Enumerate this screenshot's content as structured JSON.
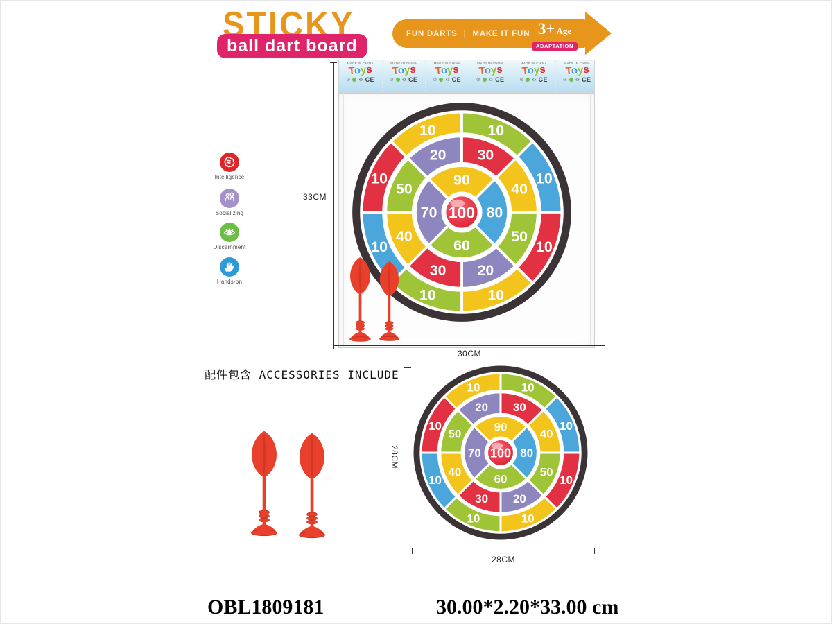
{
  "header": {
    "title_line1": "STICKY",
    "title_line2": "ball dart board",
    "colors": {
      "title": "#E8951C",
      "pill_bg": "#E0246A",
      "pill_text": "#FFFFFF"
    },
    "banner": {
      "text_left": "FUN DARTS",
      "divider": "|",
      "text_right": "MAKE IT FUN",
      "age_big": "3+",
      "age_word": "Age",
      "badge": "ADAPTATION",
      "color": "#E8951C",
      "badge_color": "#E2246C"
    }
  },
  "features": [
    {
      "label": "Intelligence",
      "icon": "brain-icon",
      "color": "#E02428"
    },
    {
      "label": "Socializing",
      "icon": "people-icon",
      "color": "#A292C9"
    },
    {
      "label": "Discernment",
      "icon": "eye-icon",
      "color": "#6CBE45"
    },
    {
      "label": "Hands-on",
      "icon": "hand-icon",
      "color": "#2E9BD9"
    }
  ],
  "bag": {
    "card": {
      "made_in": "MADE IN CHINA",
      "brand_letters": [
        {
          "ch": "T",
          "color": "#E8622D"
        },
        {
          "ch": "o",
          "color": "#3D9BD5"
        },
        {
          "ch": "y",
          "color": "#8CBF3F"
        },
        {
          "ch": "s",
          "color": "#D92B35"
        }
      ],
      "icons": [
        "⊘",
        "♻"
      ],
      "palm": "🌴",
      "ce": "CE",
      "repeats": 6
    }
  },
  "dimensions": {
    "bag_height": "33CM",
    "bag_width": "30CM",
    "board_height": "28CM",
    "board_width": "28CM"
  },
  "accessories": {
    "title": "配件包含 ACCESSORIES INCLUDE",
    "dart_count": 2,
    "dart_color": "#E8402B",
    "dart_dark": "#B52A1C"
  },
  "footer": {
    "sku": "OBL1809181",
    "size": "30.00*2.20*33.00 cm"
  },
  "board": {
    "border_color": "#3B3335",
    "label_color": "#FFFFFF",
    "center": {
      "value": "100",
      "color_inner": "#F4606E",
      "color_outer": "#DD1F31"
    },
    "rings": [
      {
        "name": "outer",
        "segments": [
          {
            "value": "10",
            "color": "#F3C51C",
            "start": -45,
            "end": 0
          },
          {
            "value": "10",
            "color": "#9FC437",
            "start": 0,
            "end": 45
          },
          {
            "value": "10",
            "color": "#4BA7DB",
            "start": 45,
            "end": 90
          },
          {
            "value": "10",
            "color": "#E23142",
            "start": 90,
            "end": 135
          },
          {
            "value": "10",
            "color": "#F3C51C",
            "start": 135,
            "end": 180
          },
          {
            "value": "10",
            "color": "#9FC437",
            "start": 180,
            "end": 225
          },
          {
            "value": "10",
            "color": "#4BA7DB",
            "start": 225,
            "end": 270
          },
          {
            "value": "10",
            "color": "#E23142",
            "start": 270,
            "end": 315
          }
        ]
      },
      {
        "name": "middle",
        "segments": [
          {
            "value": "20",
            "color": "#8E86BE",
            "start": -45,
            "end": 0
          },
          {
            "value": "30",
            "color": "#E23142",
            "start": 0,
            "end": 45
          },
          {
            "value": "40",
            "color": "#F3C51C",
            "start": 45,
            "end": 90
          },
          {
            "value": "50",
            "color": "#9FC437",
            "start": 90,
            "end": 135
          },
          {
            "value": "20",
            "color": "#8E86BE",
            "start": 135,
            "end": 180
          },
          {
            "value": "30",
            "color": "#E23142",
            "start": 180,
            "end": 225
          },
          {
            "value": "40",
            "color": "#F3C51C",
            "start": 225,
            "end": 270
          },
          {
            "value": "50",
            "color": "#9FC437",
            "start": 270,
            "end": 315
          }
        ]
      },
      {
        "name": "inner",
        "segments": [
          {
            "value": "90",
            "color": "#F3C51C",
            "start": -45,
            "end": 45
          },
          {
            "value": "80",
            "color": "#4BA7DB",
            "start": 45,
            "end": 135
          },
          {
            "value": "60",
            "color": "#9FC437",
            "start": 135,
            "end": 225
          },
          {
            "value": "70",
            "color": "#8E86BE",
            "start": 225,
            "end": 315
          }
        ]
      }
    ]
  }
}
